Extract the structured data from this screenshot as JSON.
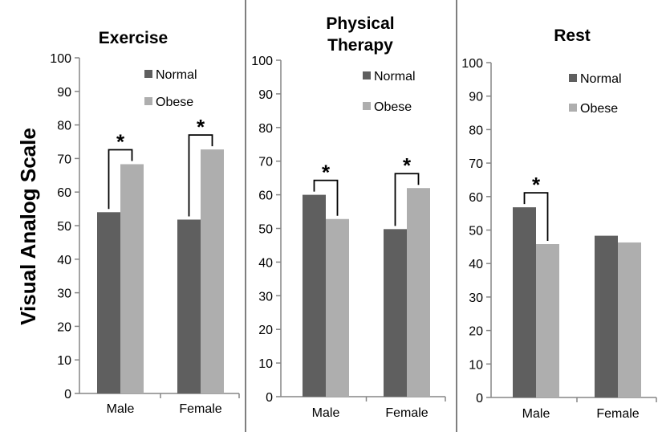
{
  "chart_data": {
    "type": "bar",
    "ylabel": "Visual Analog Scale",
    "ylim": [
      0,
      100
    ],
    "yticks": [
      0,
      10,
      20,
      30,
      40,
      50,
      60,
      70,
      80,
      90,
      100
    ],
    "categories": [
      "Male",
      "Female"
    ],
    "legend_entries": [
      "Normal",
      "Obese"
    ],
    "legend_position": "top-right",
    "colors": {
      "Normal": "#5f5f5f",
      "Obese": "#aeaeae",
      "axis": "#868686",
      "divider": "#7f7f7f"
    },
    "grid": false,
    "significance_marker": "*",
    "panels": [
      {
        "title_lines": [
          "Exercise"
        ],
        "series": [
          {
            "name": "Normal",
            "values": [
              54,
              51.8
            ]
          },
          {
            "name": "Obese",
            "values": [
              68.3,
              72.7
            ]
          }
        ],
        "significant": [
          true,
          true
        ]
      },
      {
        "title_lines": [
          "Physical",
          "Therapy"
        ],
        "series": [
          {
            "name": "Normal",
            "values": [
              60,
              49.8
            ]
          },
          {
            "name": "Obese",
            "values": [
              52.8,
              62
            ]
          }
        ],
        "significant": [
          true,
          true
        ]
      },
      {
        "title_lines": [
          "Rest"
        ],
        "series": [
          {
            "name": "Normal",
            "values": [
              56.8,
              48.3
            ]
          },
          {
            "name": "Obese",
            "values": [
              45.8,
              46.3
            ]
          }
        ],
        "significant": [
          true,
          false
        ]
      }
    ]
  }
}
